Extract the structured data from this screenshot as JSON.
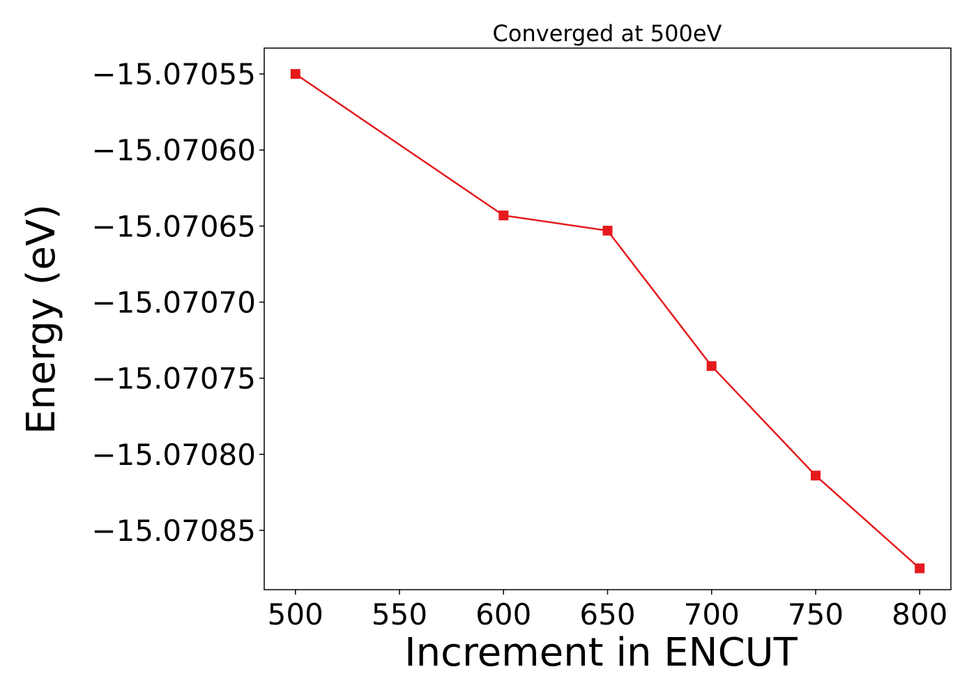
{
  "chart_data": {
    "type": "line",
    "title": "Converged at 500eV",
    "xlabel": "Increment in ENCUT",
    "ylabel": "Energy (eV)",
    "x": [
      500,
      600,
      650,
      700,
      750,
      800
    ],
    "series": [
      {
        "values": [
          -15.07055,
          -15.070643,
          -15.070653,
          -15.070742,
          -15.070814,
          -15.070875
        ],
        "color": "#e41a1c",
        "marker": "square"
      }
    ],
    "x_ticks": [
      500,
      550,
      600,
      650,
      700,
      750,
      800
    ],
    "x_tick_labels": [
      "500",
      "550",
      "600",
      "650",
      "700",
      "750",
      "800"
    ],
    "y_ticks": [
      -15.07055,
      -15.0706,
      -15.07065,
      -15.0707,
      -15.07075,
      -15.0708,
      -15.07085
    ],
    "y_tick_labels": [
      "−15.07055",
      "−15.07060",
      "−15.07065",
      "−15.07070",
      "−15.07075",
      "−15.07080",
      "−15.07085"
    ],
    "xlim": [
      485,
      815
    ],
    "ylim": [
      -15.070889,
      -15.070533
    ],
    "grid": false,
    "legend": false
  }
}
